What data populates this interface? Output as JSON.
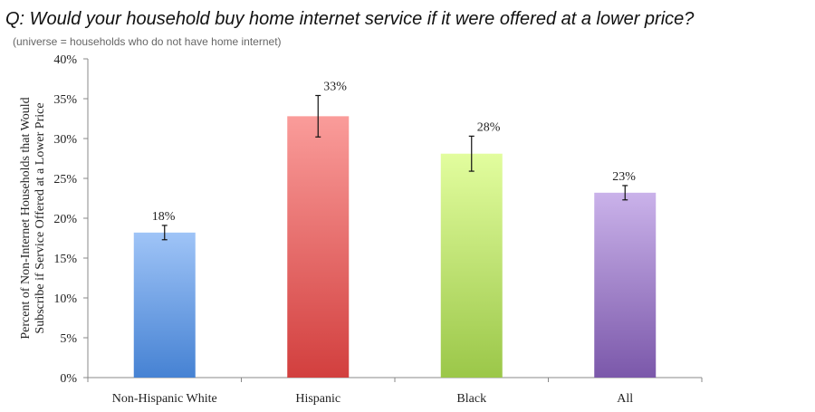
{
  "chart_data": {
    "type": "bar",
    "title": "Q: Would your household buy home internet service if it were offered at a lower price?",
    "subtitle": "(universe = households who do not have home internet)",
    "y_label": [
      "Percent of Non-Internet Households that Would",
      "Subscribe if Service Offered at a Lower Price"
    ],
    "categories": [
      "Non-Hispanic White",
      "Hispanic",
      "Black",
      "All"
    ],
    "values": [
      18.2,
      32.8,
      28.1,
      23.2
    ],
    "value_labels": [
      "18%",
      "33%",
      "28%",
      "23%"
    ],
    "errors": [
      0.9,
      2.6,
      2.2,
      0.9
    ],
    "colors": [
      [
        "#9fc4f7",
        "#4682d3"
      ],
      [
        "#fa9c9a",
        "#d23f3e"
      ],
      [
        "#e2fd9e",
        "#9bc749"
      ],
      [
        "#cab2ea",
        "#7b58aa"
      ]
    ],
    "ylim": [
      0,
      40
    ],
    "yticks": [
      {
        "value": 0,
        "label": "0%"
      },
      {
        "value": 5,
        "label": "5%"
      },
      {
        "value": 10,
        "label": "10%"
      },
      {
        "value": 15,
        "label": "15%"
      },
      {
        "value": 20,
        "label": "20%"
      },
      {
        "value": 25,
        "label": "25%"
      },
      {
        "value": 30,
        "label": "30%"
      },
      {
        "value": 35,
        "label": "35%"
      },
      {
        "value": 40,
        "label": "40%"
      }
    ],
    "grid": false
  }
}
